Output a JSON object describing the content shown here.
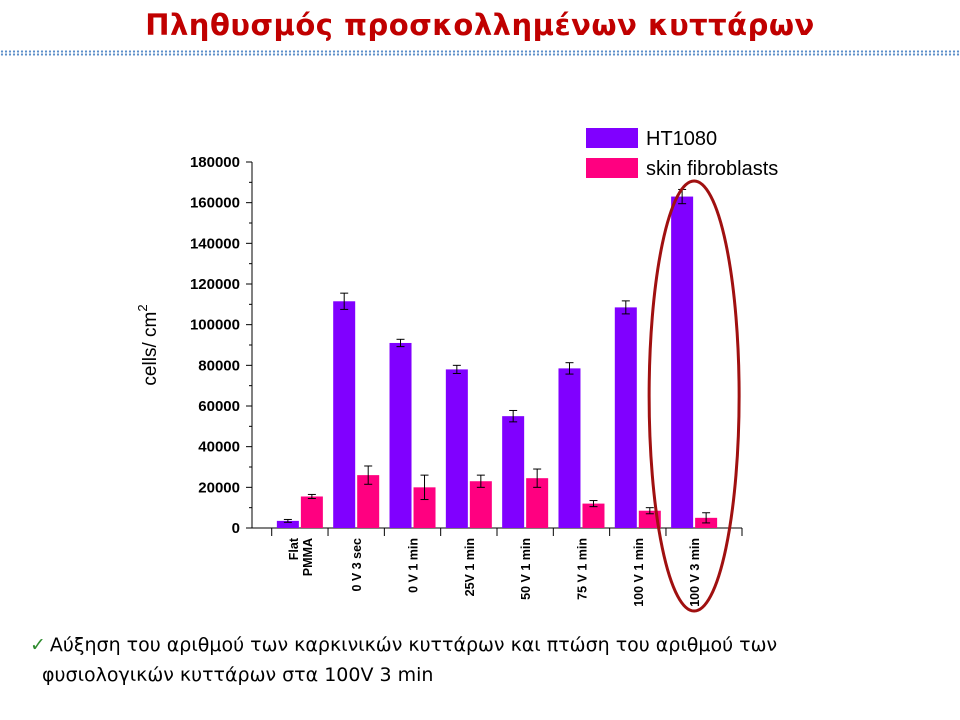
{
  "slide": {
    "title": "Πληθυσμός προσκολλημένων κυττάρων",
    "note_line1": "Αύξηση του αριθμού των καρκινικών κυττάρων και πτώση του αριθμού των",
    "note_line2": "φυσιολογικών κυττάρων στα 100V 3 min",
    "check_mark": "✓"
  },
  "colors": {
    "title": "#c00000",
    "ht1080": "#8000ff",
    "fibroblasts": "#ff0080",
    "highlight_ellipse": "#a01010",
    "check": "#2e8b2e"
  },
  "chart_data": {
    "type": "bar",
    "title": "",
    "xlabel": "",
    "ylabel": "cells/ cm",
    "ylabel_sup": "2",
    "ylim": [
      0,
      180000
    ],
    "yticks": [
      0,
      20000,
      40000,
      60000,
      80000,
      100000,
      120000,
      140000,
      160000,
      180000
    ],
    "categories": [
      [
        "Flat",
        "PMMA"
      ],
      [
        "0 V 3 sec"
      ],
      [
        "0 V 1 min"
      ],
      [
        "25V 1 min"
      ],
      [
        "50 V 1 min"
      ],
      [
        "75 V 1 min"
      ],
      [
        "100 V 1 min"
      ],
      [
        "100 V 3 min"
      ]
    ],
    "series": [
      {
        "name": "HT1080",
        "color": "#8000ff",
        "values": [
          3500,
          111500,
          91000,
          78000,
          55000,
          78500,
          108500,
          163000
        ],
        "errors": [
          700,
          4000,
          1800,
          2000,
          2800,
          2800,
          3200,
          3500
        ]
      },
      {
        "name": "skin fibroblasts",
        "color": "#ff0080",
        "values": [
          15500,
          26000,
          20000,
          23000,
          24500,
          12000,
          8500,
          5000
        ],
        "errors": [
          1000,
          4500,
          6000,
          3000,
          4500,
          1500,
          1500,
          2500
        ]
      }
    ],
    "legend_position": "top-right",
    "grid": false,
    "highlight": "100 V 3 min"
  }
}
